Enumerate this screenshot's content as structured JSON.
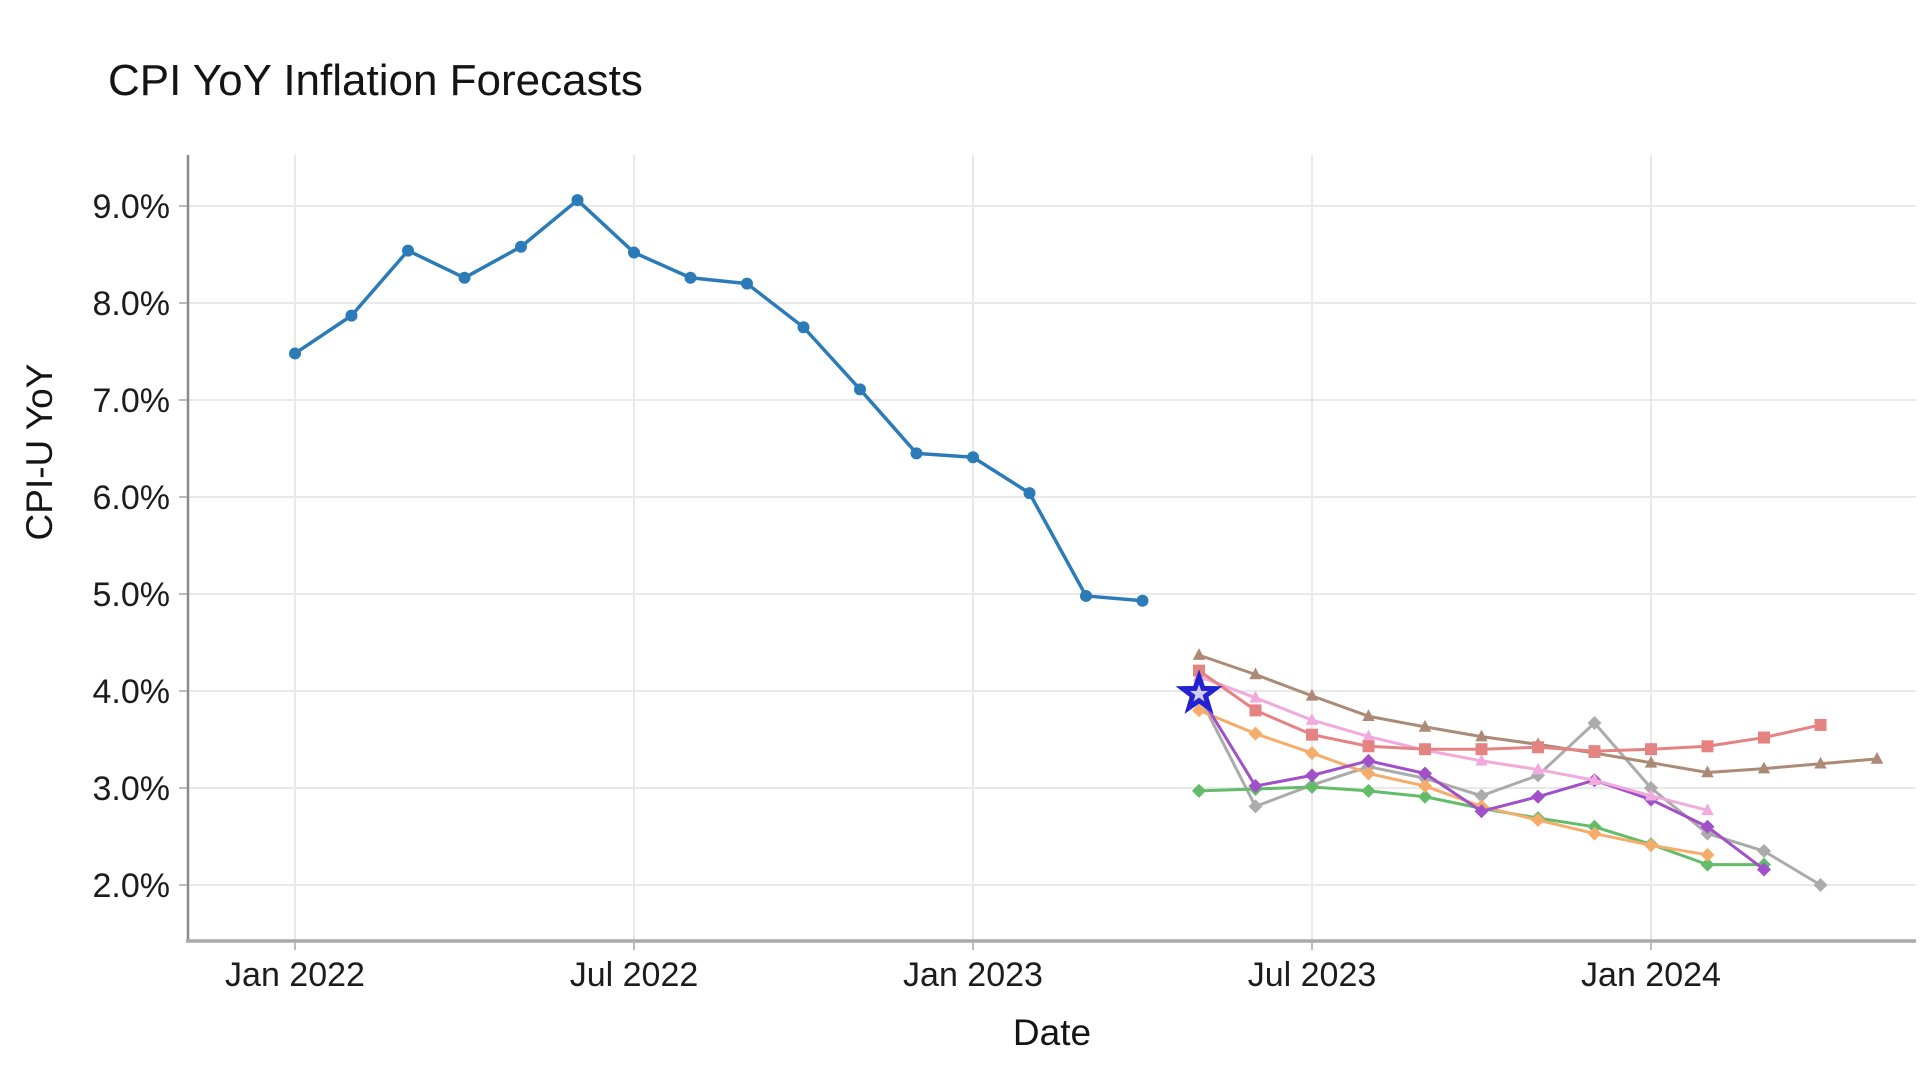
{
  "chart_data": {
    "type": "line",
    "title": "CPI YoY Inflation Forecasts",
    "xlabel": "Date",
    "ylabel": "CPI-U YoY",
    "grid": true,
    "legend": false,
    "x_axis": {
      "unit": "month",
      "note_index_base": "month_index 0 = Jan 2022",
      "tick_labels": [
        "Jan 2022",
        "Jul 2022",
        "Jan 2023",
        "Jul 2023",
        "Jan 2024"
      ],
      "tick_month_indices": [
        0,
        6,
        12,
        18,
        24
      ]
    },
    "y_axis": {
      "tick_labels": [
        "2.0%",
        "3.0%",
        "4.0%",
        "5.0%",
        "6.0%",
        "7.0%",
        "8.0%",
        "9.0%"
      ],
      "tick_values": [
        2,
        3,
        4,
        5,
        6,
        7,
        8,
        9
      ],
      "range": [
        1.45,
        9.55
      ]
    },
    "series": [
      {
        "id": "forecast-gray",
        "color": "#ababab",
        "marker": "diamond",
        "start_month_index": 16,
        "values": [
          3.95,
          2.81,
          3.03,
          3.22,
          3.1,
          2.92,
          3.13,
          3.67,
          3.0,
          2.53,
          2.35,
          2.0
        ]
      },
      {
        "id": "forecast-green",
        "color": "#62bc6a",
        "marker": "diamond",
        "start_month_index": 16,
        "values": [
          2.97,
          2.99,
          3.01,
          2.97,
          2.91,
          2.79,
          2.69,
          2.6,
          2.42,
          2.21,
          2.21
        ]
      },
      {
        "id": "forecast-orange",
        "color": "#f6ad6b",
        "marker": "diamond",
        "start_month_index": 16,
        "values": [
          3.8,
          3.56,
          3.36,
          3.15,
          3.02,
          2.81,
          2.67,
          2.53,
          2.41,
          2.31
        ]
      },
      {
        "id": "forecast-purple",
        "color": "#a050c8",
        "marker": "diamond",
        "start_month_index": 16,
        "values": [
          3.97,
          3.02,
          3.13,
          3.28,
          3.15,
          2.76,
          2.91,
          3.08,
          2.88,
          2.6,
          2.16
        ]
      },
      {
        "id": "forecast-pink",
        "color": "#f0aadc",
        "marker": "triangle",
        "start_month_index": 16,
        "values": [
          4.15,
          3.93,
          3.7,
          3.53,
          3.39,
          3.28,
          3.19,
          3.08,
          2.92,
          2.77
        ]
      },
      {
        "id": "forecast-brown",
        "color": "#ab8a76",
        "marker": "triangle",
        "start_month_index": 16,
        "values": [
          4.37,
          4.17,
          3.95,
          3.74,
          3.63,
          3.53,
          3.45,
          3.36,
          3.26,
          3.16,
          3.2,
          3.25,
          3.3
        ]
      },
      {
        "id": "forecast-salmon",
        "color": "#e58383",
        "marker": "square",
        "start_month_index": 16,
        "values": [
          4.21,
          3.8,
          3.55,
          3.43,
          3.4,
          3.4,
          3.42,
          3.38,
          3.4,
          3.43,
          3.52,
          3.65
        ]
      },
      {
        "id": "actual-cpi",
        "color": "#2b7bb9",
        "marker": "circle",
        "start_month_index": 0,
        "values": [
          7.48,
          7.87,
          8.54,
          8.26,
          8.58,
          9.06,
          8.52,
          8.26,
          8.2,
          7.75,
          7.11,
          6.45,
          6.41,
          6.04,
          4.98,
          4.93
        ]
      }
    ],
    "star_annotation": {
      "month_index": 16,
      "value": 3.97,
      "edge_color": "#2422d0",
      "fill_color": "#d2cfee"
    },
    "style": {
      "grid_color": "#e9e9e9",
      "left_spine_color": "#8a8a8a",
      "bottom_spine_color": "#aaaaaa",
      "tick_color": "#bbbbbb",
      "background": "#ffffff"
    }
  }
}
